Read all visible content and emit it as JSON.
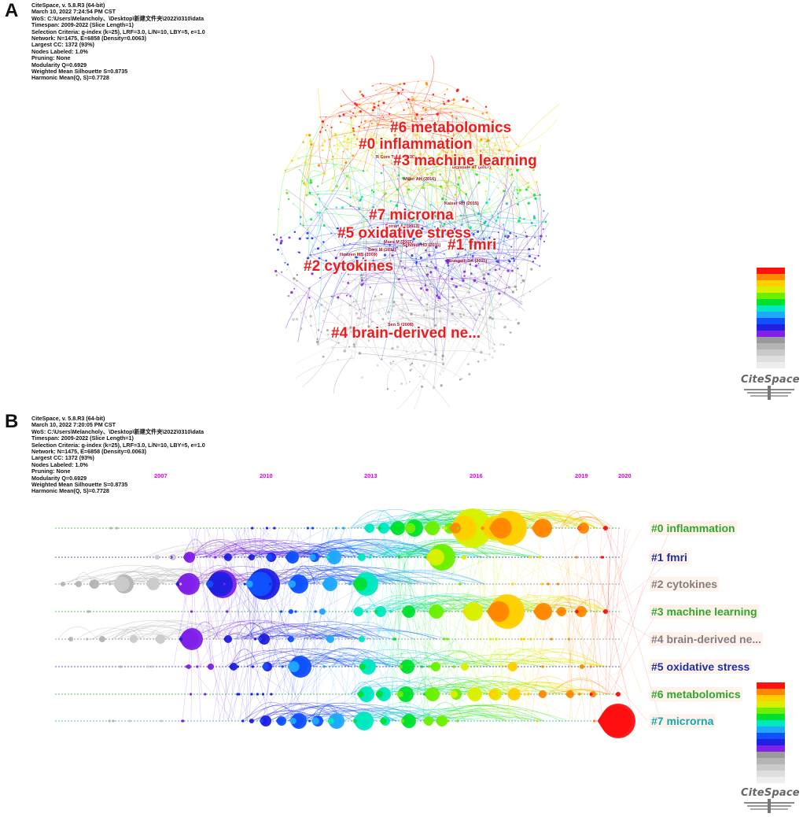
{
  "colors": {
    "cluster_label": "#ee1c1c",
    "ref_label": "#b4142a",
    "year_label": "#e000e0",
    "timeline_green": "#2ea82e",
    "timeline_navy": "#1c2fa8",
    "timeline_gray": "#808080",
    "timeline_cyan": "#14a8b4"
  },
  "legend_colors": [
    "#ff1010",
    "#ff8800",
    "#ffd000",
    "#d8f000",
    "#6cf000",
    "#00e030",
    "#00e8c0",
    "#20a8ff",
    "#1050ff",
    "#2020e0",
    "#8020e8",
    "#9a9a9a",
    "#b4b4b4",
    "#cacaca",
    "#dedede",
    "#eeeeee"
  ],
  "panel_a": {
    "letter": "A",
    "meta": [
      "CiteSpace, v. 5.8.R3 (64-bit)",
      "March 10, 2022 7:24:54 PM CST",
      "WoS: C:\\Users\\Melancholy、\\Desktop\\新建文件夹\\2022\\0310\\data",
      "Timespan: 2009-2022 (Slice Length=1)",
      "Selection Criteria: g-index (k=25), LRF=3.0, L/N=10, LBY=5, e=1.0",
      "Network: N=1475, E=6858 (Density=0.0063)",
      "Largest CC: 1372 (93%)",
      "Nodes Labeled: 1.0%",
      "Pruning: None",
      "Modularity Q=0.6929",
      "Weighted Mean Silhouette S=0.8735",
      "Harmonic Mean(Q, S)=0.7728"
    ],
    "clusters": [
      {
        "label": "#6 metabolomics"
      },
      {
        "label": "#0 inflammation"
      },
      {
        "label": "#3 machine learning"
      },
      {
        "label": "#7 microrna"
      },
      {
        "label": "#5 oxidative stress"
      },
      {
        "label": "#1 fmri"
      },
      {
        "label": "#2 cytokines"
      },
      {
        "label": "#4 brain-derived ne..."
      }
    ],
    "references": [
      "R Core Team (2020)",
      "Drysdale AT (2017)",
      "Miller AH (2016)",
      "Kaiser RH (2015)",
      "Ferrari AJ (2013)",
      "Maes M (2011)",
      "Schmidt HD (2011)",
      "Berk M (2011)",
      "Howren MB (2009)",
      "Pizzagalli DA (2011)",
      "Sen S (2008)"
    ],
    "logo": "CiteSpace"
  },
  "panel_b": {
    "letter": "B",
    "meta": [
      "CiteSpace, v. 5.8.R3 (64-bit)",
      "March 10, 2022 7:20:05 PM CST",
      "WoS: C:\\Users\\Melancholy、\\Desktop\\新建文件夹\\2022\\0310\\data",
      "Timespan: 2009-2022 (Slice Length=1)",
      "Selection Criteria: g-index (k=25), LRF=3.0, L/N=10, LBY=5, e=1.0",
      "Network: N=1475, E=6858 (Density=0.0063)",
      "Largest CC: 1372 (93%)",
      "Nodes Labeled: 1.0%",
      "Pruning: None",
      "Modularity Q=0.6929",
      "Weighted Mean Silhouette S=0.8735",
      "Harmonic Mean(Q, S)=0.7728"
    ],
    "years": [
      "2007",
      "2010",
      "2013",
      "2016",
      "2019",
      "2020"
    ],
    "timelines": [
      {
        "label": "#0 inflammation",
        "color": "#2ea82e"
      },
      {
        "label": "#1 fmri",
        "color": "#1c2fa8"
      },
      {
        "label": "#2 cytokines",
        "color": "#808080"
      },
      {
        "label": "#3 machine learning",
        "color": "#2ea82e"
      },
      {
        "label": "#4 brain-derived ne...",
        "color": "#808080"
      },
      {
        "label": "#5 oxidative stress",
        "color": "#1c2fa8"
      },
      {
        "label": "#6 metabolomics",
        "color": "#2ea82e"
      },
      {
        "label": "#7 microrna",
        "color": "#14a8b4"
      }
    ],
    "logo": "CiteSpace"
  }
}
